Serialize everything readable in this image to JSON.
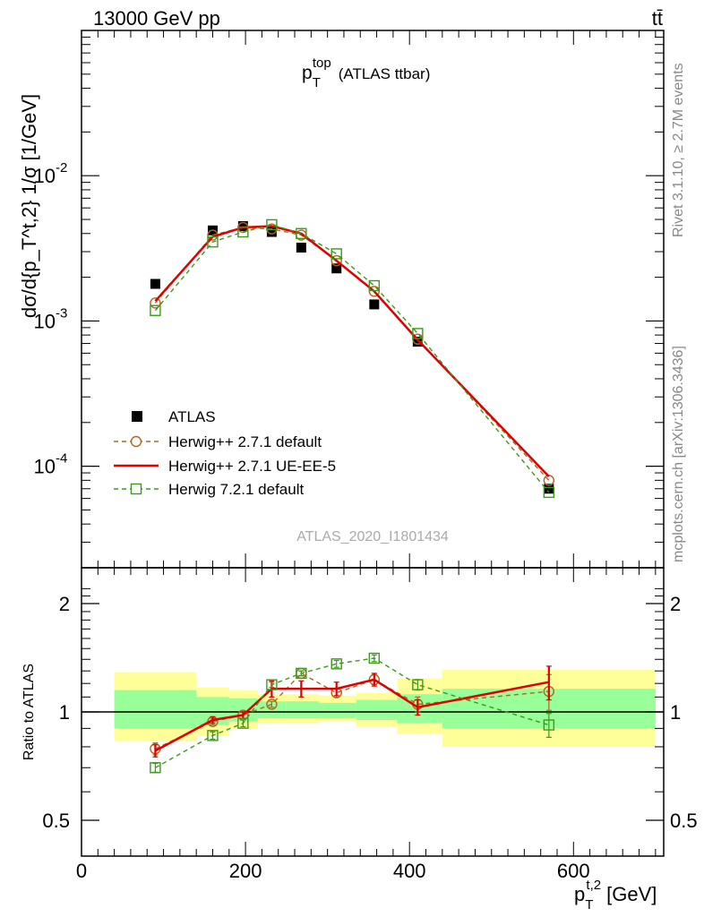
{
  "header": {
    "energy_label": "13000 GeV pp",
    "process_label": "tt̄"
  },
  "side_text": {
    "rivet": "Rivet 3.1.10, ≥ 2.7M events",
    "mcplots": "mcplots.cern.ch [arXiv:1306.3436]"
  },
  "analysis_label": "ATLAS_2020_I1801434",
  "colors": {
    "atlas": "#000000",
    "herwigpp_default": "#b2651e",
    "herwigpp_ueee5": "#e00000",
    "herwig7_default": "#3a9a1a",
    "band_inner": "#99ff99",
    "band_outer": "#ffff99"
  },
  "chart_data": [
    {
      "type": "scatter",
      "panel": "main",
      "title": "p_T^top (ATLAS ttbar)",
      "title_main": "p",
      "title_sub": "T",
      "title_sup": "top",
      "title_rest": "(ATLAS ttbar)",
      "ylabel": "dσ/d{p_T^t,2} 1/σ [1/GeV]",
      "y_scale": "log",
      "xlim": [
        0,
        710
      ],
      "ylim": [
        2e-05,
        0.1
      ],
      "y_tick_labels": [
        "10",
        "10",
        "10"
      ],
      "y_tick_exponents": [
        "-4",
        "-3",
        "-2"
      ],
      "y_tick_values": [
        0.0001,
        0.001,
        0.01
      ],
      "legend_placement": "bottom-left",
      "series": [
        {
          "name": "ATLAS",
          "style": "marker-square",
          "x": [
            90,
            160,
            197,
            232,
            268,
            311,
            357,
            410,
            570
          ],
          "y": [
            0.0018,
            0.0042,
            0.0045,
            0.0041,
            0.0032,
            0.0023,
            0.0013,
            0.00072,
            7e-05
          ]
        },
        {
          "name": "Herwig++ 2.7.1 default",
          "style": "dashed-open-circle",
          "x": [
            90,
            160,
            197,
            232,
            268,
            311,
            357,
            410,
            570
          ],
          "y": [
            0.00133,
            0.0039,
            0.0044,
            0.0043,
            0.0039,
            0.0026,
            0.0016,
            0.00075,
            8e-05
          ]
        },
        {
          "name": "Herwig++ 2.7.1 UE-EE-5",
          "style": "solid-line",
          "x": [
            90,
            160,
            197,
            232,
            268,
            311,
            357,
            410,
            570
          ],
          "y": [
            0.00137,
            0.0038,
            0.0044,
            0.0045,
            0.004,
            0.0026,
            0.0016,
            0.00074,
            8.5e-05
          ]
        },
        {
          "name": "Herwig 7.2.1 default",
          "style": "dashed-open-square",
          "x": [
            90,
            160,
            197,
            232,
            268,
            311,
            357,
            410,
            570
          ],
          "y": [
            0.00118,
            0.0035,
            0.0041,
            0.0046,
            0.004,
            0.0029,
            0.00175,
            0.00082,
            6.6e-05
          ]
        }
      ]
    },
    {
      "type": "line",
      "panel": "ratio",
      "ylabel": "Ratio to ATLAS",
      "xlabel": "p_T^t,2 [GeV]",
      "xlabel_main": "p",
      "xlabel_sub": "T",
      "xlabel_sup": "t,2",
      "xlabel_rest": "[GeV]",
      "xlim": [
        0,
        710
      ],
      "ylim": [
        0.4,
        2.3
      ],
      "x_tick_labels": [
        "0",
        "200",
        "400",
        "600"
      ],
      "x_tick_values": [
        0,
        200,
        400,
        600
      ],
      "y_tick_labels": [
        "0.5",
        "1",
        "2"
      ],
      "y_tick_values": [
        0.5,
        1,
        2
      ],
      "bands": [
        {
          "x0": 40,
          "x1": 140,
          "inner": [
            0.9,
            1.15
          ],
          "outer": [
            0.83,
            1.29
          ]
        },
        {
          "x0": 140,
          "x1": 180,
          "inner": [
            0.92,
            1.1
          ],
          "outer": [
            0.86,
            1.17
          ]
        },
        {
          "x0": 180,
          "x1": 215,
          "inner": [
            0.94,
            1.09
          ],
          "outer": [
            0.9,
            1.15
          ]
        },
        {
          "x0": 215,
          "x1": 250,
          "inner": [
            0.96,
            1.07
          ],
          "outer": [
            0.93,
            1.12
          ]
        },
        {
          "x0": 250,
          "x1": 290,
          "inner": [
            0.96,
            1.07
          ],
          "outer": [
            0.93,
            1.12
          ]
        },
        {
          "x0": 290,
          "x1": 335,
          "inner": [
            0.96,
            1.06
          ],
          "outer": [
            0.94,
            1.11
          ]
        },
        {
          "x0": 335,
          "x1": 385,
          "inner": [
            0.95,
            1.08
          ],
          "outer": [
            0.91,
            1.13
          ]
        },
        {
          "x0": 385,
          "x1": 440,
          "inner": [
            0.93,
            1.12
          ],
          "outer": [
            0.87,
            1.24
          ]
        },
        {
          "x0": 440,
          "x1": 700,
          "inner": [
            0.9,
            1.16
          ],
          "outer": [
            0.8,
            1.31
          ]
        }
      ],
      "series": [
        {
          "name": "Herwig++ 2.7.1 default",
          "x": [
            90,
            160,
            197,
            232,
            268,
            311,
            357,
            410,
            570
          ],
          "y": [
            0.79,
            0.94,
            0.98,
            1.05,
            1.28,
            1.13,
            1.23,
            1.05,
            1.14
          ],
          "err": [
            0.03,
            0.02,
            0.02,
            0.02,
            0.02,
            0.03,
            0.04,
            0.05,
            0.13
          ]
        },
        {
          "name": "Herwig++ 2.7.1 UE-EE-5",
          "x": [
            90,
            160,
            197,
            232,
            268,
            311,
            357,
            410,
            570
          ],
          "y": [
            0.78,
            0.95,
            0.98,
            1.16,
            1.16,
            1.16,
            1.23,
            1.03,
            1.21
          ],
          "err": [
            0.03,
            0.02,
            0.02,
            0.06,
            0.06,
            0.05,
            0.05,
            0.05,
            0.13
          ]
        },
        {
          "name": "Herwig 7.2.1 default",
          "x": [
            90,
            160,
            197,
            232,
            268,
            311,
            357,
            410,
            570
          ],
          "y": [
            0.7,
            0.86,
            0.93,
            1.19,
            1.28,
            1.36,
            1.41,
            1.19,
            0.92
          ],
          "err": [
            0.02,
            0.02,
            0.02,
            0.02,
            0.02,
            0.03,
            0.03,
            0.04,
            0.07
          ]
        }
      ]
    }
  ]
}
